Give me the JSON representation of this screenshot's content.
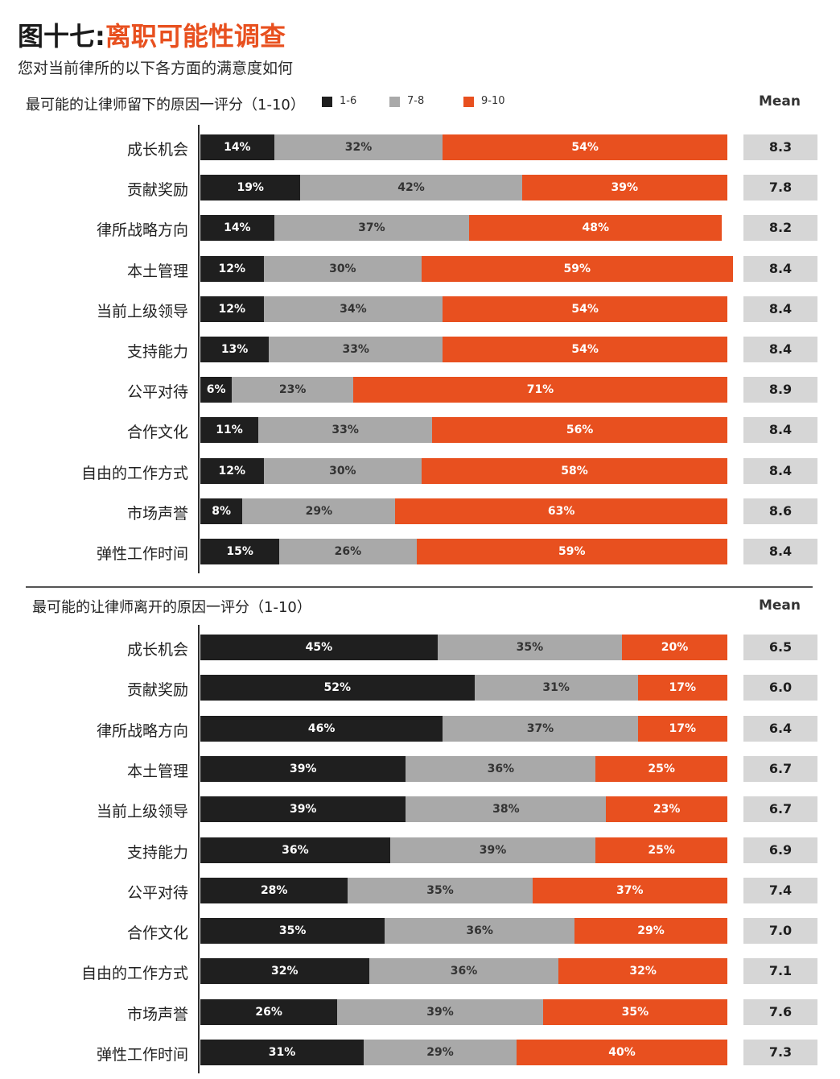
{
  "header": {
    "title_prefix": "图十七:",
    "title_main": "离职可能性调查",
    "subtitle": "您对当前律所的以下各方面的满意度如何"
  },
  "legend": [
    {
      "label": "1-6",
      "color": "#1f1f1f"
    },
    {
      "label": "7-8",
      "color": "#a9a9a9"
    },
    {
      "label": "9-10",
      "color": "#e8501f"
    }
  ],
  "mean_header": "Mean",
  "chart_data": [
    {
      "type": "bar",
      "stacked": true,
      "orientation": "horizontal",
      "title": "最可能的让律师留下的原因一评分（1-10）",
      "categories": [
        "成长机会",
        "贡献奖励",
        "律所战略方向",
        "本土管理",
        "当前上级领导",
        "支持能力",
        "公平对待",
        "合作文化",
        "自由的工作方式",
        "市场声誉",
        "弹性工作时间"
      ],
      "series": [
        {
          "name": "1-6",
          "color": "#1f1f1f",
          "values": [
            14,
            19,
            14,
            12,
            12,
            13,
            6,
            11,
            12,
            8,
            15
          ]
        },
        {
          "name": "7-8",
          "color": "#a9a9a9",
          "values": [
            32,
            42,
            37,
            30,
            34,
            33,
            23,
            33,
            30,
            29,
            26
          ]
        },
        {
          "name": "9-10",
          "color": "#e8501f",
          "values": [
            54,
            39,
            48,
            59,
            54,
            54,
            71,
            56,
            58,
            63,
            59
          ]
        }
      ],
      "means": [
        "8.3",
        "7.8",
        "8.2",
        "8.4",
        "8.4",
        "8.4",
        "8.9",
        "8.4",
        "8.4",
        "8.6",
        "8.4"
      ],
      "xlim": [
        0,
        100
      ]
    },
    {
      "type": "bar",
      "stacked": true,
      "orientation": "horizontal",
      "title": "最可能的让律师离开的原因一评分（1-10）",
      "categories": [
        "成长机会",
        "贡献奖励",
        "律所战略方向",
        "本土管理",
        "当前上级领导",
        "支持能力",
        "公平对待",
        "合作文化",
        "自由的工作方式",
        "市场声誉",
        "弹性工作时间"
      ],
      "series": [
        {
          "name": "1-6",
          "color": "#1f1f1f",
          "values": [
            45,
            52,
            46,
            39,
            39,
            36,
            28,
            35,
            32,
            26,
            31
          ]
        },
        {
          "name": "7-8",
          "color": "#a9a9a9",
          "values": [
            35,
            31,
            37,
            36,
            38,
            39,
            35,
            36,
            36,
            39,
            29
          ]
        },
        {
          "name": "9-10",
          "color": "#e8501f",
          "values": [
            20,
            17,
            17,
            25,
            23,
            25,
            37,
            29,
            32,
            35,
            40
          ]
        }
      ],
      "means": [
        "6.5",
        "6.0",
        "6.4",
        "6.7",
        "6.7",
        "6.9",
        "7.4",
        "7.0",
        "7.1",
        "7.6",
        "7.3"
      ],
      "xlim": [
        0,
        100
      ]
    }
  ]
}
